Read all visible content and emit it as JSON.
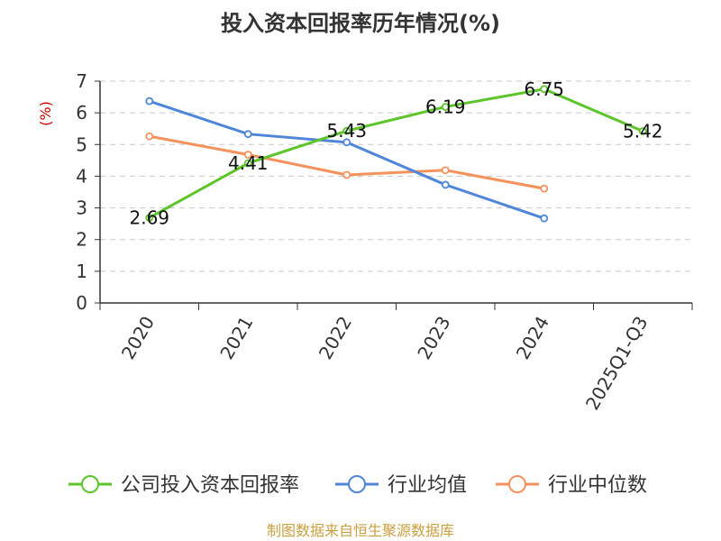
{
  "chart_data": {
    "type": "line",
    "title": "投入资本回报率历年情况(%)",
    "ylabel": "(%)",
    "categories": [
      "2020",
      "2021",
      "2022",
      "2023",
      "2024",
      "2025Q1-Q3"
    ],
    "ylim": [
      0,
      7
    ],
    "yticks": [
      0,
      1,
      2,
      3,
      4,
      5,
      6,
      7
    ],
    "grid": true,
    "legend_position": "bottom",
    "series": [
      {
        "name": "公司投入资本回报率",
        "color": "#5cc52a",
        "values": [
          2.69,
          4.41,
          5.43,
          6.19,
          6.75,
          5.42
        ],
        "labels": [
          "2.69",
          "4.41",
          "5.43",
          "6.19",
          "6.75",
          "5.42"
        ]
      },
      {
        "name": "行业均值",
        "color": "#4f86d9",
        "values": [
          6.37,
          5.33,
          5.07,
          3.73,
          2.67,
          null
        ]
      },
      {
        "name": "行业中位数",
        "color": "#f5925c",
        "values": [
          5.26,
          4.68,
          4.04,
          4.19,
          3.61,
          null
        ]
      }
    ]
  },
  "source_text": "制图数据来自恒生聚源数据库"
}
